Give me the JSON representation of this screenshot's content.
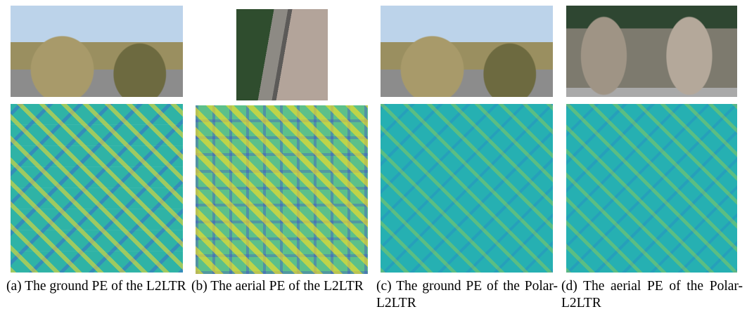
{
  "figure": {
    "panels": [
      {
        "caption": "(a) The ground PE of the L2LTR"
      },
      {
        "caption": "(b) The aerial PE of the L2LTR"
      },
      {
        "caption": "(c) The ground PE of the Polar-L2LTR"
      },
      {
        "caption": "(d) The aerial PE of the Polar-L2LTR"
      }
    ]
  }
}
